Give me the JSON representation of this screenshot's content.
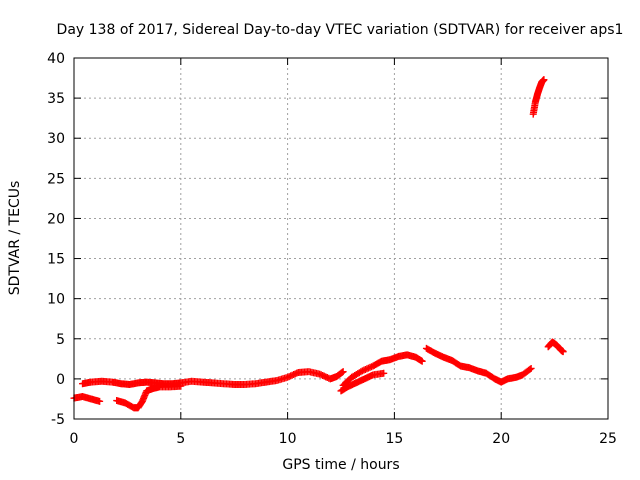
{
  "chart_data": {
    "type": "scatter",
    "title": "Day 138 of 2017, Sidereal Day-to-day VTEC variation (SDTVAR) for receiver aps1",
    "xlabel": "GPS time / hours",
    "ylabel": "SDTVAR / TECUs",
    "xlim": [
      0,
      25
    ],
    "ylim": [
      -5,
      40
    ],
    "xticks": [
      0,
      5,
      10,
      15,
      20,
      25
    ],
    "yticks": [
      -5,
      0,
      5,
      10,
      15,
      20,
      25,
      30,
      35,
      40
    ],
    "grid": true,
    "marker": "plus",
    "color": "#ff0000",
    "series": [
      {
        "name": "SDTVAR",
        "segments": [
          [
            [
              0.0,
              -2.4
            ],
            [
              0.4,
              -2.2
            ],
            [
              0.8,
              -2.5
            ],
            [
              1.2,
              -2.8
            ]
          ],
          [
            [
              0.4,
              -0.6
            ],
            [
              0.8,
              -0.4
            ],
            [
              1.3,
              -0.3
            ],
            [
              1.8,
              -0.4
            ],
            [
              2.2,
              -0.6
            ],
            [
              2.6,
              -0.7
            ],
            [
              3.0,
              -0.5
            ],
            [
              3.4,
              -0.4
            ],
            [
              3.8,
              -0.5
            ],
            [
              4.2,
              -0.6
            ],
            [
              4.6,
              -0.6
            ],
            [
              5.0,
              -0.5
            ],
            [
              5.5,
              -0.3
            ],
            [
              6.0,
              -0.4
            ],
            [
              6.5,
              -0.5
            ],
            [
              7.0,
              -0.6
            ],
            [
              7.5,
              -0.7
            ],
            [
              8.0,
              -0.7
            ],
            [
              8.5,
              -0.6
            ],
            [
              9.0,
              -0.4
            ],
            [
              9.5,
              -0.2
            ],
            [
              10.0,
              0.2
            ],
            [
              10.5,
              0.8
            ],
            [
              11.0,
              0.9
            ],
            [
              11.5,
              0.6
            ],
            [
              12.0,
              0.0
            ],
            [
              12.3,
              0.3
            ],
            [
              12.6,
              0.9
            ]
          ],
          [
            [
              2.0,
              -2.7
            ],
            [
              2.4,
              -3.0
            ],
            [
              2.8,
              -3.6
            ],
            [
              3.0,
              -3.6
            ],
            [
              3.2,
              -2.8
            ],
            [
              3.4,
              -1.5
            ],
            [
              3.7,
              -1.2
            ],
            [
              4.0,
              -1.0
            ],
            [
              4.5,
              -1.0
            ],
            [
              5.0,
              -0.9
            ]
          ],
          [
            [
              12.5,
              -1.5
            ],
            [
              12.8,
              -1.0
            ],
            [
              13.2,
              -0.5
            ],
            [
              13.6,
              0.0
            ],
            [
              14.0,
              0.5
            ],
            [
              14.5,
              0.7
            ]
          ],
          [
            [
              12.6,
              -0.8
            ],
            [
              13.0,
              0.2
            ],
            [
              13.5,
              1.0
            ],
            [
              14.0,
              1.6
            ],
            [
              14.4,
              2.2
            ],
            [
              14.8,
              2.4
            ],
            [
              15.2,
              2.8
            ],
            [
              15.6,
              3.0
            ],
            [
              16.0,
              2.7
            ],
            [
              16.3,
              2.2
            ]
          ],
          [
            [
              16.5,
              3.8
            ],
            [
              16.9,
              3.2
            ],
            [
              17.3,
              2.7
            ],
            [
              17.7,
              2.3
            ],
            [
              18.1,
              1.6
            ],
            [
              18.5,
              1.4
            ],
            [
              18.9,
              1.0
            ],
            [
              19.3,
              0.7
            ],
            [
              19.7,
              0.0
            ],
            [
              20.0,
              -0.4
            ],
            [
              20.3,
              0.0
            ],
            [
              20.7,
              0.2
            ],
            [
              21.0,
              0.5
            ],
            [
              21.4,
              1.3
            ]
          ],
          [
            [
              21.5,
              33.0
            ],
            [
              21.6,
              34.5
            ],
            [
              21.7,
              35.5
            ],
            [
              21.8,
              36.3
            ],
            [
              21.9,
              37.0
            ],
            [
              22.0,
              37.3
            ]
          ],
          [
            [
              22.2,
              4.0
            ],
            [
              22.4,
              4.6
            ],
            [
              22.6,
              4.2
            ],
            [
              22.8,
              3.6
            ],
            [
              22.9,
              3.4
            ]
          ]
        ]
      }
    ]
  }
}
